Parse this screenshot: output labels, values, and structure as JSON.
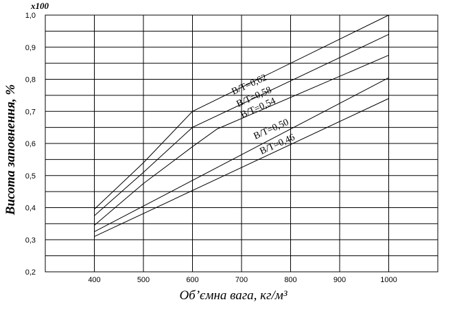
{
  "chart_data": {
    "type": "line",
    "title": "",
    "xlabel": "Об’ємна вага, кг/м³",
    "ylabel": "Висота заповнення, %",
    "y_multiplier_label": "x100",
    "xlim": [
      300,
      1100
    ],
    "ylim": [
      0.2,
      1.0
    ],
    "x_ticks": [
      400,
      500,
      600,
      700,
      800,
      900,
      1000
    ],
    "x_tick_labels": [
      "400",
      "500",
      "600",
      "700",
      "800",
      "900",
      "1000"
    ],
    "y_ticks": [
      0.2,
      0.3,
      0.4,
      0.5,
      0.6,
      0.7,
      0.8,
      0.9,
      1.0
    ],
    "y_tick_labels": [
      "0,2",
      "0,3",
      "0,4",
      "0,5",
      "0,6",
      "0,7",
      "0,8",
      "0,9",
      "1,0"
    ],
    "y_gridlines": [
      0.2,
      0.25,
      0.3,
      0.35,
      0.4,
      0.45,
      0.5,
      0.55,
      0.6,
      0.65,
      0.7,
      0.75,
      0.8,
      0.85,
      0.9,
      0.95,
      1.0
    ],
    "grid": true,
    "legend": "none",
    "series": [
      {
        "name": "В/Т=0,62",
        "x": [
          400,
          500,
          600,
          1000
        ],
        "y": [
          0.395,
          0.54,
          0.7,
          1.0
        ]
      },
      {
        "name": "В/Т=0,58",
        "x": [
          400,
          500,
          600,
          1000
        ],
        "y": [
          0.375,
          0.51,
          0.65,
          0.94
        ]
      },
      {
        "name": "В/Т=0,54",
        "x": [
          400,
          500,
          600,
          650,
          1000
        ],
        "y": [
          0.345,
          0.475,
          0.59,
          0.645,
          0.875
        ]
      },
      {
        "name": "В/Т=0,50",
        "x": [
          400,
          1000
        ],
        "y": [
          0.325,
          0.805
        ]
      },
      {
        "name": "В/Т=0,46",
        "x": [
          400,
          1000
        ],
        "y": [
          0.31,
          0.74
        ]
      }
    ]
  }
}
